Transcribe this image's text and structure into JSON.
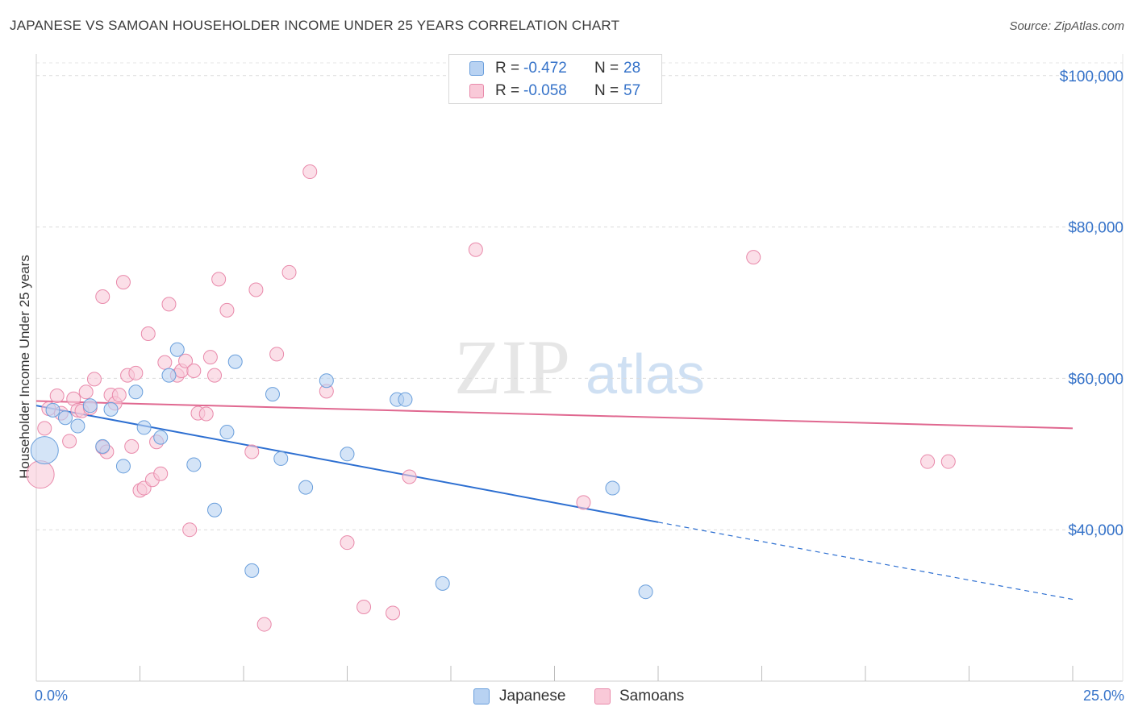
{
  "title": "JAPANESE VS SAMOAN HOUSEHOLDER INCOME UNDER 25 YEARS CORRELATION CHART",
  "source": "Source: ZipAtlas.com",
  "watermark": {
    "zip": "ZIP",
    "atlas": "atlas"
  },
  "stats": [
    {
      "r_label": "R =",
      "r_value": "-0.472",
      "n_label": "N =",
      "n_value": "28",
      "color": "#b8d2f2",
      "border": "#6a9fdc"
    },
    {
      "r_label": "R =",
      "r_value": "-0.058",
      "n_label": "N =",
      "n_value": "57",
      "color": "#f9c9d8",
      "border": "#e98aab"
    }
  ],
  "legend": [
    {
      "label": "Japanese",
      "color": "#b8d2f2",
      "border": "#6a9fdc"
    },
    {
      "label": "Samoans",
      "color": "#f9c9d8",
      "border": "#e98aab"
    }
  ],
  "chart_data": {
    "type": "scatter",
    "title": "JAPANESE VS SAMOAN HOUSEHOLDER INCOME UNDER 25 YEARS CORRELATION CHART",
    "xlabel": "",
    "ylabel": "Householder Income Under 25 years",
    "xlim": [
      0,
      25
    ],
    "ylim": [
      20000,
      102000
    ],
    "x_tick_labels": [
      "0.0%",
      "25.0%"
    ],
    "y_ticks": [
      40000,
      60000,
      80000,
      100000
    ],
    "y_tick_labels": [
      "$40,000",
      "$60,000",
      "$80,000",
      "$100,000"
    ],
    "colors": {
      "japanese_line": "#2d6fd1",
      "samoan_line": "#e06890",
      "axis_text": "#3673c9"
    },
    "series": [
      {
        "name": "Japanese",
        "fill": "#b8d2f2",
        "stroke": "#6a9fdc",
        "points": [
          {
            "x": 0.2,
            "y": 50500,
            "big": true
          },
          {
            "x": 0.4,
            "y": 55800
          },
          {
            "x": 0.7,
            "y": 54800
          },
          {
            "x": 1.0,
            "y": 53700
          },
          {
            "x": 1.3,
            "y": 56400
          },
          {
            "x": 1.6,
            "y": 51000
          },
          {
            "x": 1.8,
            "y": 55900
          },
          {
            "x": 2.1,
            "y": 48400
          },
          {
            "x": 2.4,
            "y": 58200
          },
          {
            "x": 2.6,
            "y": 53500
          },
          {
            "x": 3.0,
            "y": 52200
          },
          {
            "x": 3.2,
            "y": 60400
          },
          {
            "x": 3.4,
            "y": 63800
          },
          {
            "x": 3.8,
            "y": 48600
          },
          {
            "x": 4.3,
            "y": 42600
          },
          {
            "x": 4.6,
            "y": 52900
          },
          {
            "x": 4.8,
            "y": 62200
          },
          {
            "x": 5.2,
            "y": 34600
          },
          {
            "x": 5.7,
            "y": 57900
          },
          {
            "x": 5.9,
            "y": 49400
          },
          {
            "x": 6.5,
            "y": 45600
          },
          {
            "x": 7.0,
            "y": 59700
          },
          {
            "x": 7.5,
            "y": 50000
          },
          {
            "x": 8.7,
            "y": 57200
          },
          {
            "x": 8.9,
            "y": 57200
          },
          {
            "x": 9.8,
            "y": 32900
          },
          {
            "x": 13.9,
            "y": 45500
          },
          {
            "x": 14.7,
            "y": 31800
          }
        ],
        "trend": {
          "x0": 0,
          "y0": 56400,
          "x1": 15.0,
          "y1": 41000,
          "dash_x1": 25.0,
          "dash_y1": 30800
        }
      },
      {
        "name": "Samoans",
        "fill": "#f9c9d8",
        "stroke": "#e98aab",
        "points": [
          {
            "x": 0.1,
            "y": 47300,
            "big": true
          },
          {
            "x": 0.2,
            "y": 53400
          },
          {
            "x": 0.3,
            "y": 56000
          },
          {
            "x": 0.5,
            "y": 57700
          },
          {
            "x": 0.6,
            "y": 55400
          },
          {
            "x": 0.8,
            "y": 51700
          },
          {
            "x": 0.9,
            "y": 57300
          },
          {
            "x": 1.0,
            "y": 55800
          },
          {
            "x": 1.1,
            "y": 55700
          },
          {
            "x": 1.2,
            "y": 58200
          },
          {
            "x": 1.3,
            "y": 56100
          },
          {
            "x": 1.4,
            "y": 59900
          },
          {
            "x": 1.6,
            "y": 50900
          },
          {
            "x": 1.6,
            "y": 70800
          },
          {
            "x": 1.7,
            "y": 50300
          },
          {
            "x": 1.8,
            "y": 57800
          },
          {
            "x": 1.9,
            "y": 56700
          },
          {
            "x": 2.0,
            "y": 57800
          },
          {
            "x": 2.1,
            "y": 72700
          },
          {
            "x": 2.2,
            "y": 60400
          },
          {
            "x": 2.3,
            "y": 51000
          },
          {
            "x": 2.4,
            "y": 60700
          },
          {
            "x": 2.5,
            "y": 45200
          },
          {
            "x": 2.6,
            "y": 45500
          },
          {
            "x": 2.7,
            "y": 65900
          },
          {
            "x": 2.8,
            "y": 46600
          },
          {
            "x": 2.9,
            "y": 51600
          },
          {
            "x": 3.0,
            "y": 47400
          },
          {
            "x": 3.1,
            "y": 62100
          },
          {
            "x": 3.2,
            "y": 69800
          },
          {
            "x": 3.4,
            "y": 60400
          },
          {
            "x": 3.5,
            "y": 61000
          },
          {
            "x": 3.6,
            "y": 62300
          },
          {
            "x": 3.7,
            "y": 40000
          },
          {
            "x": 3.8,
            "y": 61000
          },
          {
            "x": 3.9,
            "y": 55400
          },
          {
            "x": 4.1,
            "y": 55300
          },
          {
            "x": 4.2,
            "y": 62800
          },
          {
            "x": 4.3,
            "y": 60400
          },
          {
            "x": 4.4,
            "y": 73100
          },
          {
            "x": 4.6,
            "y": 69000
          },
          {
            "x": 5.2,
            "y": 50300
          },
          {
            "x": 5.3,
            "y": 71700
          },
          {
            "x": 5.5,
            "y": 27500
          },
          {
            "x": 5.8,
            "y": 63200
          },
          {
            "x": 6.1,
            "y": 74000
          },
          {
            "x": 6.6,
            "y": 87300
          },
          {
            "x": 7.0,
            "y": 58300
          },
          {
            "x": 7.5,
            "y": 38300
          },
          {
            "x": 7.9,
            "y": 29800
          },
          {
            "x": 8.6,
            "y": 29000
          },
          {
            "x": 9.0,
            "y": 47000
          },
          {
            "x": 10.6,
            "y": 77000
          },
          {
            "x": 13.2,
            "y": 43600
          },
          {
            "x": 17.3,
            "y": 76000
          },
          {
            "x": 21.5,
            "y": 49000
          },
          {
            "x": 22.0,
            "y": 49000
          }
        ],
        "trend": {
          "x0": 0,
          "y0": 57000,
          "x1": 25.0,
          "y1": 53400
        }
      }
    ]
  }
}
